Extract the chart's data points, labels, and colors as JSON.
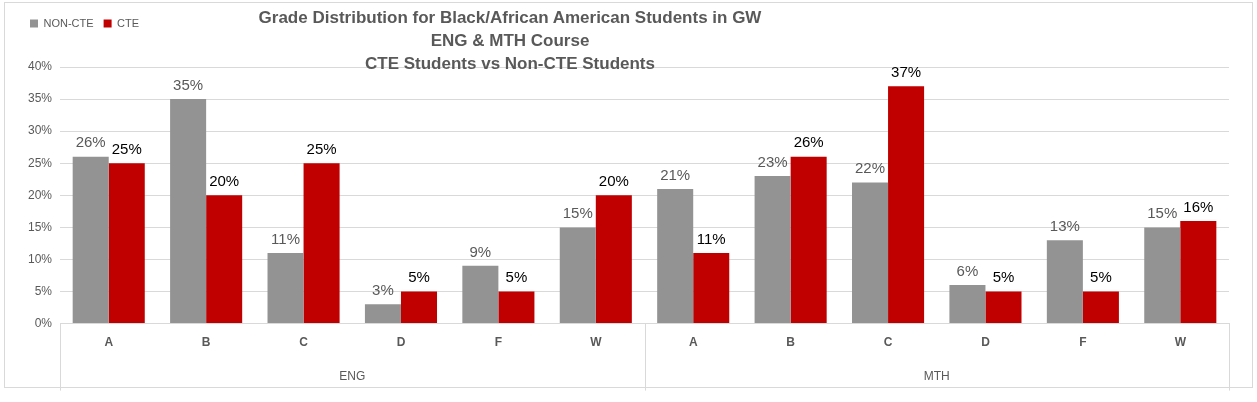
{
  "chart_data": {
    "type": "bar",
    "title": "Grade Distribution for Black/African American Students in GW ENG & MTH Course",
    "subtitle": "CTE Students vs Non-CTE Students",
    "categories": [
      "A",
      "B",
      "C",
      "D",
      "F",
      "W",
      "A",
      "B",
      "C",
      "D",
      "F",
      "W"
    ],
    "series": [
      {
        "name": "NON-CTE",
        "color": "#939393",
        "values": [
          26,
          35,
          11,
          3,
          9,
          15,
          21,
          23,
          22,
          6,
          13,
          15
        ],
        "value_labels": [
          "26%",
          "35%",
          "11%",
          "3%",
          "9%",
          "15%",
          "21%",
          "23%",
          "22%",
          "6%",
          "13%",
          "15%"
        ]
      },
      {
        "name": "CTE",
        "color": "#c00000",
        "values": [
          25,
          20,
          25,
          5,
          5,
          20,
          11,
          26,
          37,
          5,
          5,
          16
        ],
        "value_labels": [
          "25%",
          "20%",
          "25%",
          "5%",
          "5%",
          "20%",
          "11%",
          "26%",
          "37%",
          "5%",
          "5%",
          "16%"
        ]
      }
    ],
    "ylim": [
      0,
      40
    ],
    "yticks": [
      {
        "value": 0,
        "label": "0%"
      },
      {
        "value": 5,
        "label": "5%"
      },
      {
        "value": 10,
        "label": "10%"
      },
      {
        "value": 15,
        "label": "15%"
      },
      {
        "value": 20,
        "label": "20%"
      },
      {
        "value": 25,
        "label": "25%"
      },
      {
        "value": 30,
        "label": "30%"
      },
      {
        "value": 35,
        "label": "35%"
      },
      {
        "value": 40,
        "label": "40%"
      }
    ],
    "annotations": [
      "ENG",
      "MTH"
    ],
    "grid": "y",
    "legend": "top left"
  }
}
